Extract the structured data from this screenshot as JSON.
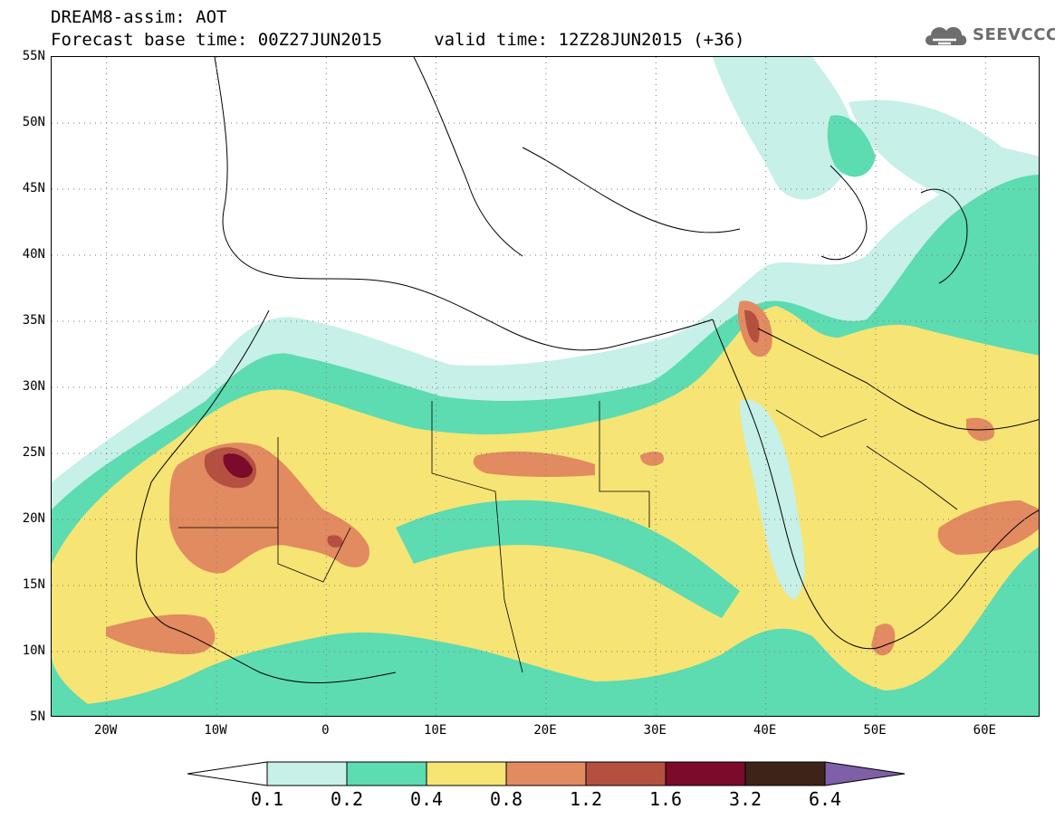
{
  "header": {
    "line1": "DREAM8-assim: AOT",
    "line2": "Forecast base time: 00Z27JUN2015     valid time: 12Z28JUN2015 (+36)"
  },
  "logo": {
    "text": "SEEVCCC",
    "icon": "cloud-icon",
    "color": "#6d6d6d"
  },
  "map": {
    "lat_range": [
      5,
      55
    ],
    "lon_range": [
      -25,
      65
    ],
    "lat_ticks": [
      "55N",
      "50N",
      "45N",
      "40N",
      "35N",
      "30N",
      "25N",
      "20N",
      "15N",
      "10N",
      "5N"
    ],
    "lon_ticks": [
      "20W",
      "10W",
      "0",
      "10E",
      "20E",
      "30E",
      "40E",
      "50E",
      "60E"
    ]
  },
  "legend": {
    "labels": [
      "0.1",
      "0.2",
      "0.4",
      "0.8",
      "1.2",
      "1.6",
      "3.2",
      "6.4"
    ],
    "colors": [
      "#c6f0e8",
      "#5ddbb1",
      "#f6e475",
      "#e28a60",
      "#b55041",
      "#7b0a2b",
      "#3c2418"
    ],
    "under_color": "#ffffff",
    "over_color": "#7f5fa8"
  }
}
